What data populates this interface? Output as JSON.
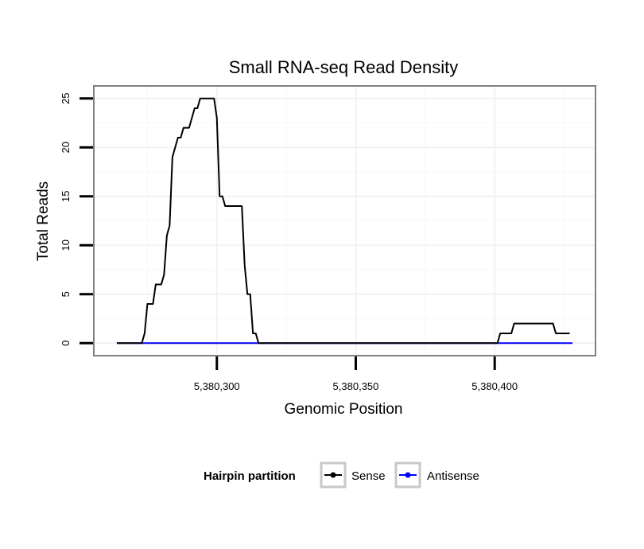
{
  "chart_data": {
    "type": "line",
    "title": "Small RNA-seq Read Density",
    "xlabel": "Genomic Position",
    "ylabel": "Total Reads",
    "xlim": [
      5380256,
      5380436
    ],
    "ylim": [
      -1.2,
      26.2
    ],
    "x_ticks": [
      5380300,
      5380350,
      5380400
    ],
    "x_tick_labels": [
      "5,380,300",
      "5,380,350",
      "5,380,400"
    ],
    "y_ticks": [
      0,
      5,
      10,
      15,
      20,
      25
    ],
    "y_tick_labels": [
      "0",
      "5",
      "10",
      "15",
      "20",
      "25"
    ],
    "grid": true,
    "legend": {
      "title": "Hairpin partition",
      "position": "bottom"
    },
    "series": [
      {
        "name": "Sense",
        "color": "#000000",
        "points": [
          [
            5380264,
            0
          ],
          [
            5380273,
            0
          ],
          [
            5380274,
            1
          ],
          [
            5380275,
            4
          ],
          [
            5380277,
            4
          ],
          [
            5380278,
            6
          ],
          [
            5380280,
            6
          ],
          [
            5380281,
            7
          ],
          [
            5380282,
            11
          ],
          [
            5380283,
            12
          ],
          [
            5380284,
            19
          ],
          [
            5380285,
            20
          ],
          [
            5380286,
            21
          ],
          [
            5380287,
            21
          ],
          [
            5380288,
            22
          ],
          [
            5380290,
            22
          ],
          [
            5380291,
            23
          ],
          [
            5380292,
            24
          ],
          [
            5380293,
            24
          ],
          [
            5380294,
            25
          ],
          [
            5380299,
            25
          ],
          [
            5380300,
            23
          ],
          [
            5380301,
            15
          ],
          [
            5380302,
            15
          ],
          [
            5380303,
            14
          ],
          [
            5380309,
            14
          ],
          [
            5380310,
            8
          ],
          [
            5380311,
            5
          ],
          [
            5380312,
            5
          ],
          [
            5380313,
            1
          ],
          [
            5380314,
            1
          ],
          [
            5380315,
            0
          ],
          [
            5380401,
            0
          ],
          [
            5380402,
            1
          ],
          [
            5380406,
            1
          ],
          [
            5380407,
            2
          ],
          [
            5380421,
            2
          ],
          [
            5380422,
            1
          ],
          [
            5380427,
            1
          ]
        ]
      },
      {
        "name": "Antisense",
        "color": "#0000ff",
        "points": [
          [
            5380264,
            0
          ],
          [
            5380428,
            0
          ]
        ]
      }
    ]
  }
}
